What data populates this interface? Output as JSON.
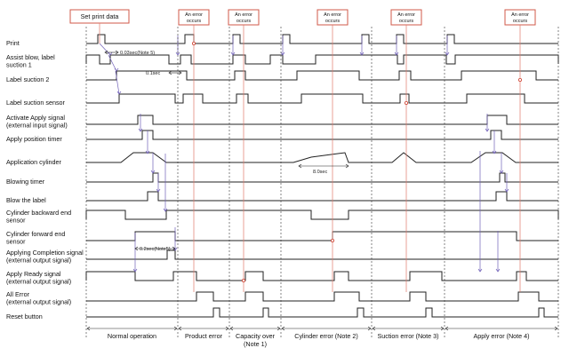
{
  "header_label": "Set print data",
  "error_label_line1": "An error",
  "error_label_line2": "occurs",
  "signals": [
    {
      "id": "print",
      "lines": [
        "Print"
      ]
    },
    {
      "id": "assist",
      "lines": [
        "Assist blow, label",
        "suction 1"
      ]
    },
    {
      "id": "suction2",
      "lines": [
        "Label suction 2"
      ]
    },
    {
      "id": "sensor",
      "lines": [
        "Label suction sensor"
      ]
    },
    {
      "id": "activate",
      "lines": [
        "Activate Apply signal",
        "(external input signal)"
      ]
    },
    {
      "id": "apply_timer",
      "lines": [
        "Apply position timer"
      ]
    },
    {
      "id": "cylinder",
      "lines": [
        "Application cylinder"
      ]
    },
    {
      "id": "blow_timer",
      "lines": [
        "Blowing timer"
      ]
    },
    {
      "id": "blow",
      "lines": [
        "Blow the label"
      ]
    },
    {
      "id": "back_sensor",
      "lines": [
        "Cylinder backward end",
        "sensor"
      ]
    },
    {
      "id": "fwd_sensor",
      "lines": [
        "Cylinder forward end",
        "sensor"
      ]
    },
    {
      "id": "completion",
      "lines": [
        "Applying Completion signal",
        "(external output signal)"
      ]
    },
    {
      "id": "ready",
      "lines": [
        "Apply Ready signal",
        "(external output signal)"
      ]
    },
    {
      "id": "all_error",
      "lines": [
        "All Error",
        "(external output signal)"
      ]
    },
    {
      "id": "reset",
      "lines": [
        "Reset button"
      ]
    }
  ],
  "annotations": {
    "t1": "0.03sec(Note 5)",
    "t2": "0.1sec",
    "t3": "8.0sec",
    "t4": "0.2sec(Note5)"
  },
  "sections": [
    {
      "lines": [
        "Normal operation"
      ]
    },
    {
      "lines": [
        "Product error"
      ]
    },
    {
      "lines": [
        "Capacity over",
        "(Note 1)"
      ]
    },
    {
      "lines": [
        "Cylinder error (Note 2)"
      ]
    },
    {
      "lines": [
        "Suction error (Note 3)"
      ]
    },
    {
      "lines": [
        "Apply error (Note 4)"
      ]
    }
  ]
}
